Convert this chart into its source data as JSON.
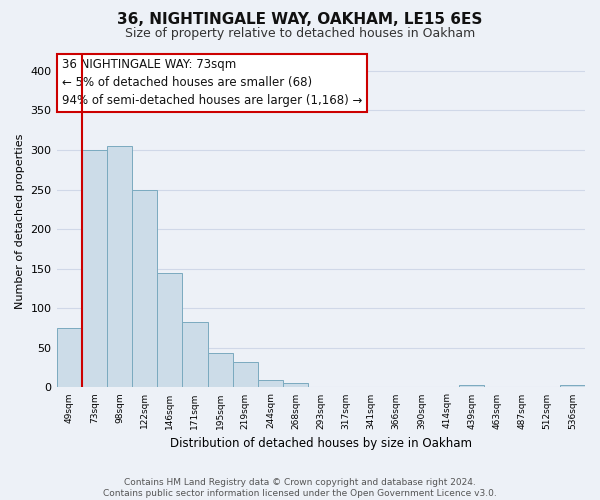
{
  "title": "36, NIGHTINGALE WAY, OAKHAM, LE15 6ES",
  "subtitle": "Size of property relative to detached houses in Oakham",
  "xlabel": "Distribution of detached houses by size in Oakham",
  "ylabel": "Number of detached properties",
  "bin_labels": [
    "49sqm",
    "73sqm",
    "98sqm",
    "122sqm",
    "146sqm",
    "171sqm",
    "195sqm",
    "219sqm",
    "244sqm",
    "268sqm",
    "293sqm",
    "317sqm",
    "341sqm",
    "366sqm",
    "390sqm",
    "414sqm",
    "439sqm",
    "463sqm",
    "487sqm",
    "512sqm",
    "536sqm"
  ],
  "bar_heights": [
    75,
    300,
    305,
    250,
    145,
    83,
    44,
    32,
    9,
    6,
    0,
    0,
    0,
    0,
    0,
    0,
    3,
    0,
    0,
    0,
    3
  ],
  "bar_color": "#ccdce8",
  "bar_edge_color": "#7aaabf",
  "highlight_bar_edge_color": "#cc0000",
  "annotation_line1": "36 NIGHTINGALE WAY: 73sqm",
  "annotation_line2": "← 5% of detached houses are smaller (68)",
  "annotation_line3": "94% of semi-detached houses are larger (1,168) →",
  "annotation_box_edge_color": "#cc0000",
  "annotation_box_facecolor": "#ffffff",
  "ylim": [
    0,
    420
  ],
  "yticks": [
    0,
    50,
    100,
    150,
    200,
    250,
    300,
    350,
    400
  ],
  "vline_bar_index": 1,
  "footer_text": "Contains HM Land Registry data © Crown copyright and database right 2024.\nContains public sector information licensed under the Open Government Licence v3.0.",
  "background_color": "#edf1f7",
  "grid_color": "#d0d8e8",
  "title_fontsize": 11,
  "subtitle_fontsize": 9,
  "annotation_fontsize": 8.5,
  "footer_fontsize": 6.5
}
